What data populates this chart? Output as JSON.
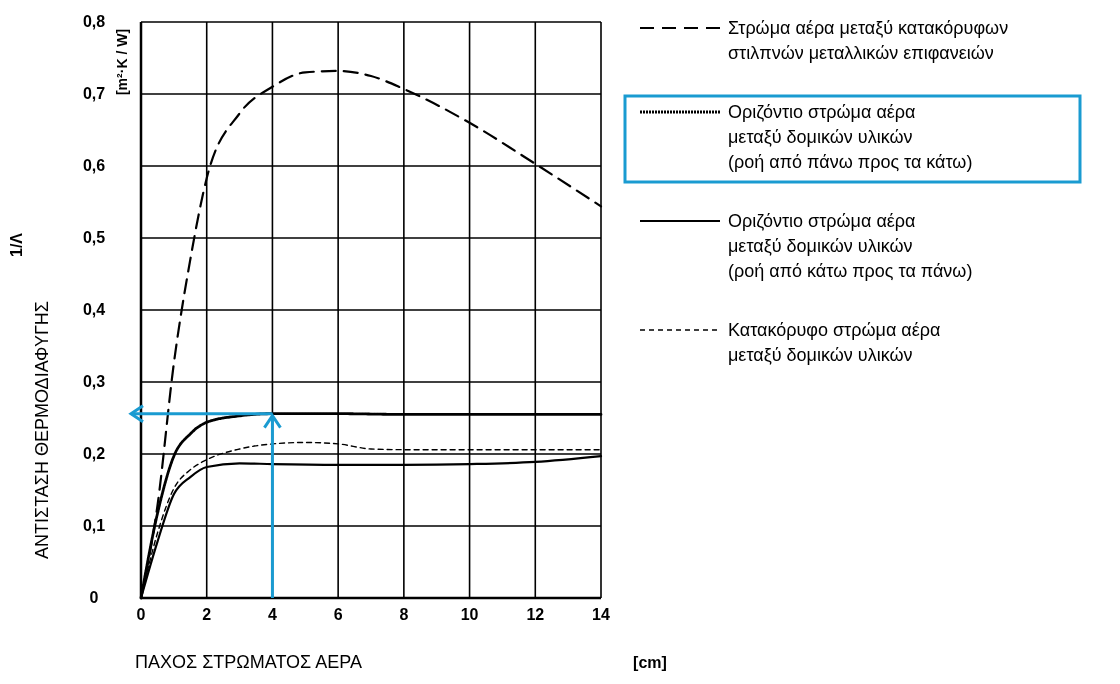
{
  "chart_data": {
    "type": "line",
    "xlabel": "ΠΑΧΟΣ ΣΤΡΩΜΑΤΟΣ ΑΕΡΑ",
    "ylabel": "ΑΝΤΙΣΤΑΣΗ ΘΕΡΜΟΔΙΑΦΥΓΗΣ",
    "annotations": [
      "[cm]",
      "1/Λ",
      "[m²·K / W]"
    ],
    "xlim": [
      0,
      14
    ],
    "ylim": [
      0,
      0.8
    ],
    "xticks": [
      0,
      2,
      4,
      6,
      8,
      10,
      12,
      14
    ],
    "yticks": [
      0,
      {
        "value": 0.1,
        "label": "0,1"
      },
      {
        "value": 0.2,
        "label": "0,2"
      },
      {
        "value": 0.3,
        "label": "0,3"
      },
      {
        "value": 0.4,
        "label": "0,4"
      },
      {
        "value": 0.5,
        "label": "0,5"
      },
      {
        "value": 0.6,
        "label": "0,6"
      },
      {
        "value": 0.7,
        "label": "0,7"
      },
      {
        "value": 0.8,
        "label": "0,8"
      }
    ],
    "grid": true,
    "legend": "right",
    "marker": "none",
    "series": [
      {
        "name": "Στρώμα αέρα μεταξύ κατακόρυφων\nστιλπνών μεταλλικών επιφανειών",
        "color": "#000000",
        "line_style": "dashed",
        "x": [
          0,
          0.5,
          1,
          1.5,
          2,
          3,
          4,
          5,
          6,
          7,
          8,
          10,
          12,
          14
        ],
        "values": [
          0,
          0.128,
          0.326,
          0.47,
          0.583,
          0.673,
          0.71,
          0.73,
          0.732,
          0.725,
          0.707,
          0.66,
          0.603,
          0.544
        ]
      },
      {
        "name": "Οριζόντιο στρώμα αέρα\nμεταξύ δομικών υλικών\n(ροή από πάνω προς τα κάτω)",
        "color": "#000000",
        "line_style": "dotted",
        "x": [
          0,
          0.5,
          1,
          1.5,
          2,
          3,
          4,
          6,
          8,
          10,
          12,
          14
        ],
        "values": [
          0,
          0.117,
          0.197,
          0.228,
          0.244,
          0.253,
          0.256,
          0.256,
          0.255,
          0.255,
          0.255,
          0.255
        ]
      },
      {
        "name": "Οριζόντιο στρώμα αέρα\nμεταξύ δομικών υλικών\n(ροή από κάτω προς τα πάνω)",
        "color": "#000000",
        "line_style": "solid",
        "x": [
          0,
          0.5,
          1,
          1.5,
          2,
          3,
          4,
          6,
          8,
          10,
          12,
          14
        ],
        "values": [
          0,
          0.078,
          0.144,
          0.168,
          0.182,
          0.187,
          0.186,
          0.185,
          0.185,
          0.186,
          0.189,
          0.197
        ]
      },
      {
        "name": "Κατακόρυφο στρώμα αέρα\nμεταξύ δομικών υλικών",
        "color": "#000000",
        "line_style": "dashed",
        "x": [
          0,
          0.5,
          1,
          1.5,
          2,
          3,
          4,
          5,
          6,
          7,
          8,
          10,
          12,
          14
        ],
        "values": [
          0,
          0.09,
          0.152,
          0.178,
          0.192,
          0.207,
          0.214,
          0.216,
          0.214,
          0.207,
          0.206,
          0.206,
          0.206,
          0.206
        ]
      }
    ]
  }
}
